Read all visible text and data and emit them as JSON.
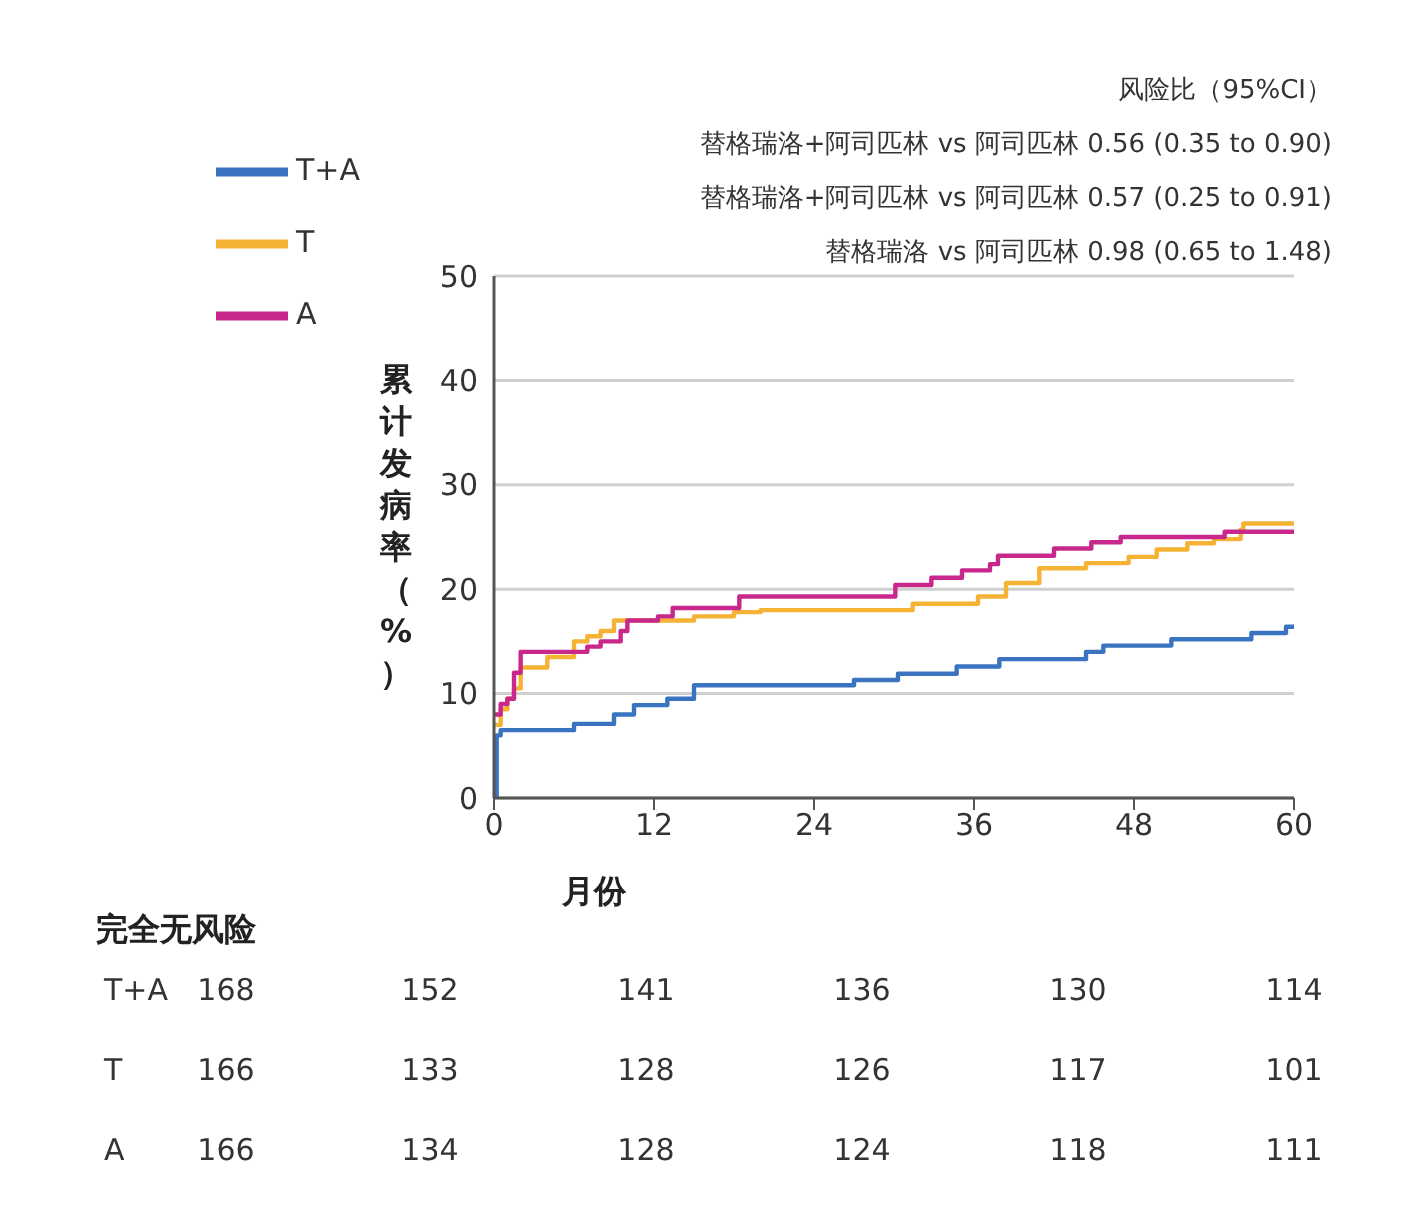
{
  "chart_data": {
    "type": "step",
    "xlabel": "月份",
    "ylabel": "累计发病率（%）",
    "xlim": [
      0,
      60
    ],
    "xticks": [
      0,
      12,
      24,
      36,
      48,
      60
    ],
    "ylim": [
      0,
      50
    ],
    "yticks": [
      0,
      10,
      20,
      30,
      40,
      50
    ],
    "grid": "y",
    "legend": "top left",
    "marker": "none",
    "line_style": "solid",
    "series": [
      {
        "name": "T+A",
        "color": "#3a73c0",
        "x": [
          0,
          0.2,
          0.5,
          6,
          9,
          10.5,
          13,
          15,
          27,
          30.3,
          34.7,
          37.9,
          44.4,
          45.7,
          50.8,
          56.8,
          59.4,
          60
        ],
        "values": [
          0,
          6,
          6.5,
          7.1,
          8,
          8.9,
          9.5,
          10.8,
          11.3,
          11.9,
          12.6,
          13.3,
          14,
          14.6,
          15.2,
          15.8,
          16.4,
          16.4
        ]
      },
      {
        "name": "T",
        "color": "#f5b335",
        "x": [
          0,
          0.5,
          1,
          1.5,
          2,
          4,
          6,
          7,
          8,
          9,
          15,
          18,
          20,
          31.4,
          36.3,
          38.4,
          40.9,
          44.4,
          47.6,
          49.7,
          52,
          54,
          56,
          56.2,
          60
        ],
        "values": [
          7,
          8.5,
          9.5,
          10.5,
          12.5,
          13.5,
          15,
          15.5,
          16,
          17,
          17.4,
          17.8,
          18,
          18.6,
          19.3,
          20.6,
          22,
          22.5,
          23.1,
          23.8,
          24.4,
          24.8,
          25.7,
          26.3,
          26.3
        ]
      },
      {
        "name": "A",
        "color": "#c8288c",
        "x": [
          0,
          0.5,
          1,
          1.5,
          2,
          7,
          8,
          9.5,
          10,
          12.3,
          13.4,
          18.4,
          30.1,
          32.8,
          35.1,
          37.2,
          37.8,
          42,
          44.8,
          47,
          54.8,
          60
        ],
        "values": [
          8,
          9,
          9.5,
          12,
          14,
          14.5,
          15,
          16,
          17,
          17.4,
          18.2,
          19.3,
          20.4,
          21.1,
          21.8,
          22.4,
          23.2,
          23.9,
          24.5,
          25,
          25.5,
          25.5
        ]
      }
    ],
    "annotations": [
      "风险比（95%CI）",
      "替格瑞洛+阿司匹林 vs 阿司匹林  0.56 (0.35 to 0.90)",
      "替格瑞洛+阿司匹林 vs 阿司匹林  0.57 (0.25 to 0.91)",
      "替格瑞洛 vs 阿司匹林  0.98 (0.65 to 1.48)",
      "完全无风险",
      "T+A",
      "168",
      "152",
      "141",
      "136",
      "130",
      "114",
      "T",
      "166",
      "133",
      "128",
      "126",
      "117",
      "101",
      "A",
      "166",
      "134",
      "128",
      "124",
      "118",
      "111"
    ]
  }
}
